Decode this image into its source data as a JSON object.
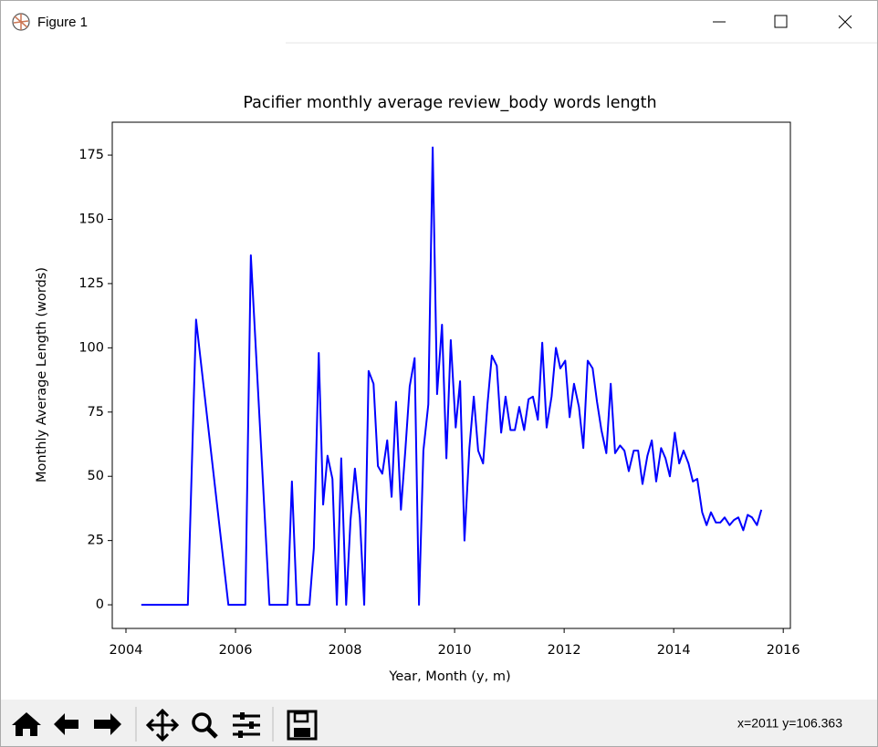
{
  "window": {
    "title": "Figure 1",
    "status": "x=2011 y=106.363"
  },
  "chart_data": {
    "type": "line",
    "title": "Pacifier monthly average review_body words length",
    "xlabel": "Year, Month (y, m)",
    "ylabel": "Monthly Average Length (words)",
    "x": [
      2004.28,
      2005.13,
      2005.28,
      2005.87,
      2006.18,
      2006.28,
      2006.62,
      2006.95,
      2007.03,
      2007.12,
      2007.35,
      2007.43,
      2007.52,
      2007.6,
      2007.68,
      2007.77,
      2007.85,
      2007.93,
      2008.02,
      2008.1,
      2008.18,
      2008.27,
      2008.35,
      2008.43,
      2008.52,
      2008.6,
      2008.68,
      2008.77,
      2008.85,
      2008.93,
      2009.02,
      2009.1,
      2009.18,
      2009.27,
      2009.35,
      2009.43,
      2009.52,
      2009.6,
      2009.68,
      2009.77,
      2009.85,
      2009.93,
      2010.02,
      2010.1,
      2010.18,
      2010.27,
      2010.35,
      2010.43,
      2010.52,
      2010.6,
      2010.68,
      2010.77,
      2010.85,
      2010.93,
      2011.02,
      2011.1,
      2011.18,
      2011.27,
      2011.35,
      2011.43,
      2011.52,
      2011.6,
      2011.68,
      2011.77,
      2011.85,
      2011.93,
      2012.02,
      2012.1,
      2012.18,
      2012.27,
      2012.35,
      2012.43,
      2012.52,
      2012.6,
      2012.68,
      2012.77,
      2012.85,
      2012.93,
      2013.02,
      2013.1,
      2013.18,
      2013.27,
      2013.35,
      2013.43,
      2013.52,
      2013.6,
      2013.68,
      2013.77,
      2013.85,
      2013.93,
      2014.02,
      2014.1,
      2014.18,
      2014.27,
      2014.35,
      2014.43,
      2014.52,
      2014.6,
      2014.68,
      2014.77,
      2014.85,
      2014.93,
      2015.02,
      2015.1,
      2015.18,
      2015.27,
      2015.35,
      2015.43,
      2015.52,
      2015.6
    ],
    "series": [
      {
        "name": "words length",
        "color": "#0000ff",
        "values": [
          0,
          0,
          111,
          0,
          0,
          136,
          0,
          0,
          48,
          0,
          0,
          22,
          98,
          39,
          58,
          49,
          0,
          57,
          0,
          33,
          53,
          34,
          0,
          91,
          86,
          54,
          51,
          64,
          42,
          79,
          37,
          60,
          85,
          96,
          0,
          60,
          78,
          178,
          82,
          109,
          57,
          103,
          69,
          87,
          25,
          61,
          81,
          60,
          55,
          78,
          97,
          93,
          67,
          81,
          68,
          68,
          77,
          68,
          80,
          81,
          72,
          102,
          69,
          81,
          100,
          92,
          95,
          73,
          86,
          77,
          61,
          95,
          92,
          79,
          68,
          59,
          86,
          59,
          62,
          60,
          52,
          60,
          60,
          47,
          58,
          64,
          48,
          61,
          57,
          50,
          67,
          55,
          60,
          55,
          48,
          49,
          36,
          31,
          36,
          32,
          32,
          34,
          31,
          33,
          34,
          29,
          35,
          34,
          31,
          37
        ]
      }
    ],
    "xlim": [
      2003.75,
      2016.13
    ],
    "ylim": [
      -9.2,
      187.8
    ],
    "xticks": [
      2004,
      2006,
      2008,
      2010,
      2012,
      2014,
      2016
    ],
    "yticks": [
      0,
      25,
      50,
      75,
      100,
      125,
      150,
      175
    ],
    "grid": false
  }
}
